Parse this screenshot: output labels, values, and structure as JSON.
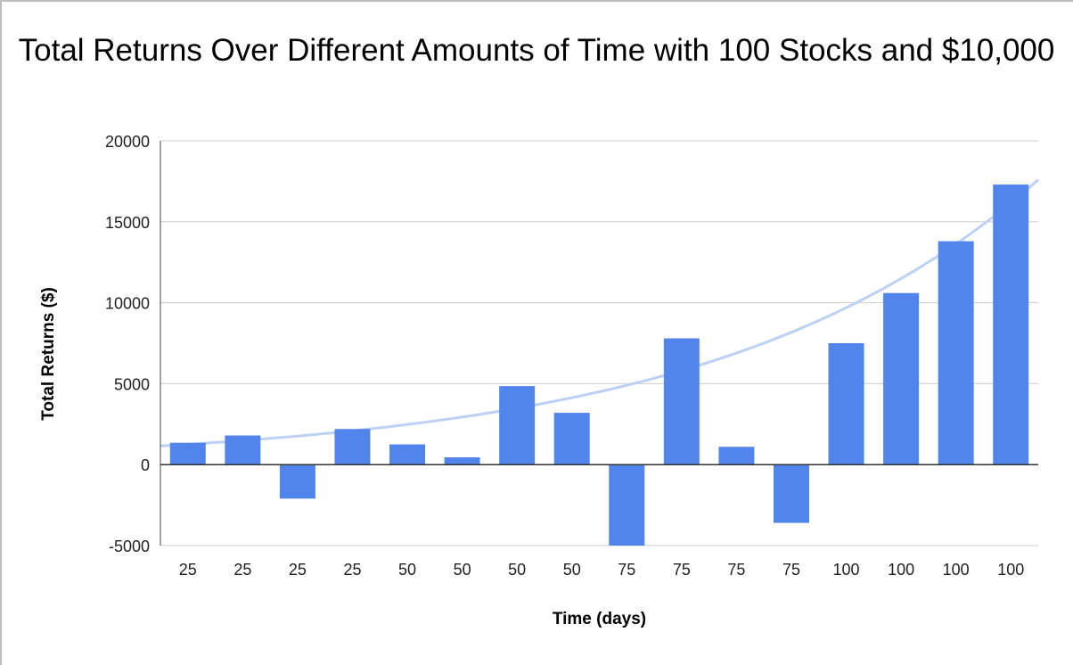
{
  "chart_data": {
    "type": "bar",
    "title": "Total Returns Over Different Amounts of Time with 100 Stocks and $10,000",
    "xlabel": "Time (days)",
    "ylabel": "Total Returns ($)",
    "categories": [
      "25",
      "25",
      "25",
      "25",
      "50",
      "50",
      "50",
      "50",
      "75",
      "75",
      "75",
      "75",
      "100",
      "100",
      "100",
      "100"
    ],
    "series": [
      {
        "values": [
          1350,
          1800,
          -2100,
          2200,
          1250,
          450,
          4850,
          3200,
          -5000,
          7800,
          1100,
          -3600,
          7500,
          10600,
          13800,
          17300
        ]
      }
    ],
    "trendline": {
      "type": "exponential",
      "start": 1150,
      "end": 17600
    },
    "ylim": [
      -5000,
      20000
    ],
    "yticks": [
      -5000,
      0,
      5000,
      10000,
      15000,
      20000
    ],
    "grid": true,
    "legend": "none",
    "colors": {
      "bar": "#5285ec",
      "trendline": "#bcd0f5",
      "grid": "#cccccc",
      "zero_line": "#333333"
    }
  }
}
